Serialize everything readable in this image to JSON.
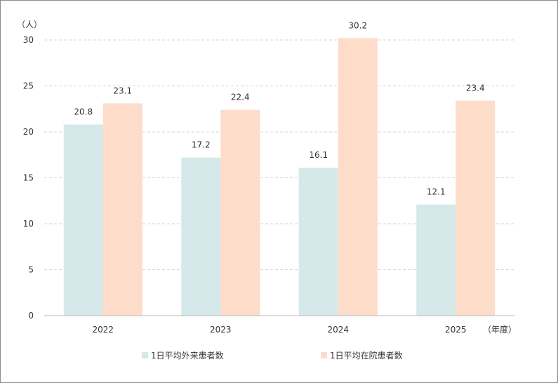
{
  "chart_data": {
    "type": "bar",
    "y_unit": "（人）",
    "x_unit": "（年度）",
    "categories": [
      "2022",
      "2023",
      "2024",
      "2025"
    ],
    "series": [
      {
        "name": "1日平均外来患者数",
        "values": [
          20.8,
          17.2,
          16.1,
          12.1
        ],
        "labels": [
          "20.8",
          "17.2",
          "16.1",
          "12.1"
        ],
        "color": "#d5e8ea"
      },
      {
        "name": "1日平均在院患者数",
        "values": [
          23.1,
          22.4,
          30.2,
          23.4
        ],
        "labels": [
          "23.1",
          "22.4",
          "30.2",
          "23.4"
        ],
        "color": "#fddcca"
      }
    ],
    "ylim": [
      0,
      30
    ],
    "yticks": [
      "0",
      "5",
      "10",
      "15",
      "20",
      "25",
      "30"
    ],
    "grid": true,
    "legend_position": "bottom"
  }
}
